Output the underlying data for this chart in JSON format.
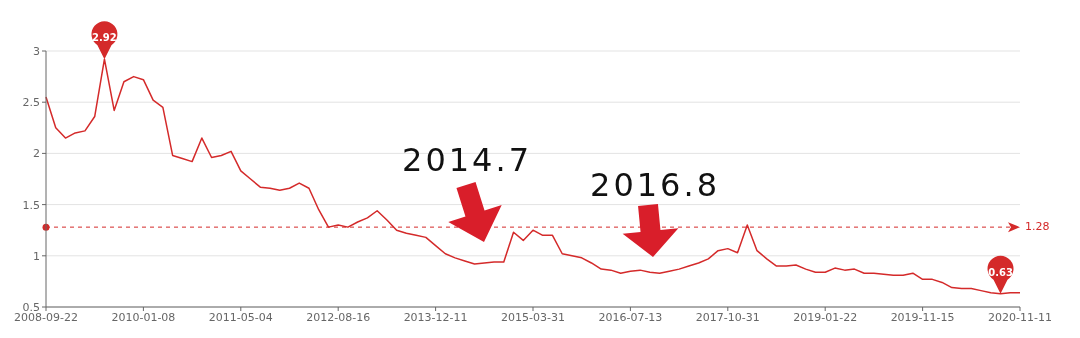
{
  "chart_data": {
    "type": "line",
    "categories": [
      "2008-09-22",
      null,
      null,
      null,
      null,
      null,
      null,
      null,
      null,
      null,
      "2010-01-08",
      null,
      null,
      null,
      null,
      null,
      null,
      null,
      null,
      null,
      "2011-05-04",
      null,
      null,
      null,
      null,
      null,
      null,
      null,
      null,
      null,
      "2012-08-16",
      null,
      null,
      null,
      null,
      null,
      null,
      null,
      null,
      null,
      "2013-12-11",
      null,
      null,
      null,
      null,
      null,
      null,
      null,
      null,
      null,
      "2015-03-31",
      null,
      null,
      null,
      null,
      null,
      null,
      null,
      null,
      null,
      "2016-07-13",
      null,
      null,
      null,
      null,
      null,
      null,
      null,
      null,
      null,
      "2017-10-31",
      null,
      null,
      null,
      null,
      null,
      null,
      null,
      null,
      null,
      "2019-01-22",
      null,
      null,
      null,
      null,
      null,
      null,
      null,
      null,
      null,
      "2019-11-15",
      null,
      null,
      null,
      null,
      null,
      null,
      null,
      null,
      null,
      "2020-11-11"
    ],
    "series": [
      {
        "color": "#d42a2a",
        "values": [
          2.55,
          2.25,
          2.15,
          2.2,
          2.22,
          2.36,
          2.92,
          2.42,
          2.7,
          2.75,
          2.72,
          2.52,
          2.45,
          1.98,
          1.95,
          1.92,
          2.15,
          1.96,
          1.98,
          2.02,
          1.83,
          1.75,
          1.67,
          1.66,
          1.64,
          1.66,
          1.71,
          1.66,
          1.45,
          1.28,
          1.3,
          1.28,
          1.33,
          1.37,
          1.44,
          1.35,
          1.25,
          1.22,
          1.2,
          1.18,
          1.1,
          1.02,
          0.98,
          0.95,
          0.92,
          0.93,
          0.94,
          0.94,
          1.23,
          1.15,
          1.25,
          1.2,
          1.2,
          1.02,
          1,
          0.98,
          0.93,
          0.87,
          0.86,
          0.83,
          0.85,
          0.86,
          0.84,
          0.83,
          0.85,
          0.87,
          0.9,
          0.93,
          0.97,
          1.05,
          1.07,
          1.03,
          1.3,
          1.05,
          0.97,
          0.9,
          0.9,
          0.91,
          0.87,
          0.84,
          0.84,
          0.88,
          0.86,
          0.87,
          0.83,
          0.83,
          0.82,
          0.81,
          0.81,
          0.83,
          0.77,
          0.77,
          0.74,
          0.69,
          0.68,
          0.68,
          0.66,
          0.64,
          0.63,
          0.64,
          0.64
        ]
      }
    ],
    "ylim": [
      0.5,
      3
    ],
    "yticks": [
      0.5,
      1,
      1.5,
      2,
      2.5,
      3
    ],
    "grid": "y",
    "ref_lines": [
      {
        "axis": "y",
        "value": 1.28,
        "label": "1.28",
        "line_style": "dashed",
        "color": "#d42a2a"
      }
    ],
    "annotations": [
      {
        "text": "2.92",
        "y": 2.92
      },
      {
        "text": "0.63",
        "y": 0.63
      },
      "2014.7",
      "2016.8"
    ]
  }
}
